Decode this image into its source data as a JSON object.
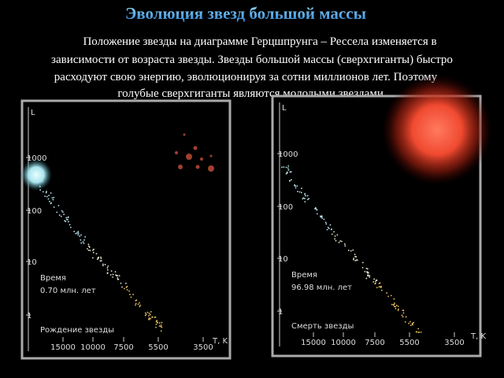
{
  "title": "Эволюция звезд большой массы",
  "text": [
    "Положение звезды на диаграмме Герцшпрунга – Рессела  изменяется в",
    "зависимости от возраста звезды. Звезды большой массы (сверхгиганты)  быстро",
    "расходуют свою энергию, эволюционируя за сотни миллионов лет. Поэтому",
    "голубые сверхгиганты являются молодыми звездами."
  ],
  "panels": [
    {
      "y_axis": "L",
      "x_axis": "T, K",
      "y_labels": [
        "1000",
        "100",
        "10",
        "1"
      ],
      "x_labels": [
        "15000",
        "10000",
        "7500",
        "5500",
        "3500"
      ],
      "time_label": "Время",
      "time_value": "0.70 млн. лет",
      "caption": "Рождение звезды"
    },
    {
      "y_axis": "L",
      "x_axis": "T, K",
      "y_labels": [
        "1000",
        "100",
        "10",
        "1"
      ],
      "x_labels": [
        "15000",
        "10000",
        "7500",
        "5500",
        "3500"
      ],
      "time_label": "Время",
      "time_value": "96.98 млн. лет",
      "caption": "Смерть звезды"
    }
  ]
}
